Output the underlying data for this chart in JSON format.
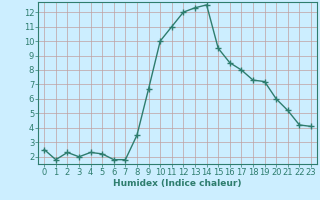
{
  "x": [
    0,
    1,
    2,
    3,
    4,
    5,
    6,
    7,
    8,
    9,
    10,
    11,
    12,
    13,
    14,
    15,
    16,
    17,
    18,
    19,
    20,
    21,
    22,
    23
  ],
  "y": [
    2.5,
    1.8,
    2.3,
    2.0,
    2.3,
    2.2,
    1.8,
    1.8,
    3.5,
    6.7,
    10.0,
    11.0,
    12.0,
    12.3,
    12.5,
    9.5,
    8.5,
    8.0,
    7.3,
    7.2,
    6.0,
    5.2,
    4.2,
    4.1
  ],
  "line_color": "#2e7d6e",
  "marker": "+",
  "marker_size": 4,
  "background_color": "#cceeff",
  "grid_color": "#c0a0a0",
  "xlabel": "Humidex (Indice chaleur)",
  "xlim": [
    -0.5,
    23.5
  ],
  "ylim": [
    1.5,
    12.7
  ],
  "yticks": [
    2,
    3,
    4,
    5,
    6,
    7,
    8,
    9,
    10,
    11,
    12
  ],
  "xticks": [
    0,
    1,
    2,
    3,
    4,
    5,
    6,
    7,
    8,
    9,
    10,
    11,
    12,
    13,
    14,
    15,
    16,
    17,
    18,
    19,
    20,
    21,
    22,
    23
  ],
  "xlabel_fontsize": 6.5,
  "tick_fontsize": 6,
  "line_width": 1.0
}
